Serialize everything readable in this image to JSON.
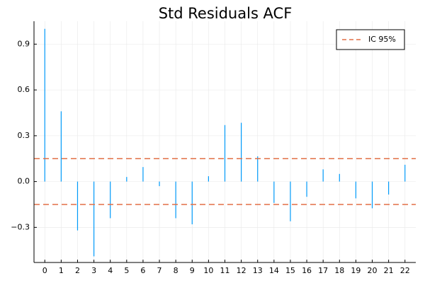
{
  "chart_data": {
    "type": "bar",
    "title": "Std Residuals ACF",
    "xlabel": "",
    "ylabel": "",
    "x": [
      0,
      1,
      2,
      3,
      4,
      5,
      6,
      7,
      8,
      9,
      10,
      11,
      12,
      13,
      14,
      15,
      16,
      17,
      18,
      19,
      20,
      21,
      22
    ],
    "values": [
      1.0,
      0.46,
      -0.32,
      -0.49,
      -0.24,
      0.03,
      0.095,
      -0.03,
      -0.24,
      -0.28,
      0.035,
      0.37,
      0.385,
      0.165,
      -0.14,
      -0.26,
      -0.1,
      0.08,
      0.05,
      -0.11,
      -0.175,
      -0.085,
      0.11
    ],
    "xlim": [
      -0.66,
      22.66
    ],
    "ylim": [
      -0.53,
      1.05
    ],
    "xticks": [
      0,
      1,
      2,
      3,
      4,
      5,
      6,
      7,
      8,
      9,
      10,
      11,
      12,
      13,
      14,
      15,
      16,
      17,
      18,
      19,
      20,
      21,
      22
    ],
    "yticks": [
      -0.3,
      0.0,
      0.3,
      0.6,
      0.9
    ],
    "ytick_labels": [
      "−0.3",
      "0.0",
      "0.3",
      "0.6",
      "0.9"
    ],
    "confidence_bounds": [
      0.15,
      -0.15
    ],
    "grid": true,
    "legend": {
      "position": "top-right",
      "entries": [
        {
          "label": "IC 95%",
          "color": "#e26f46",
          "style": "dashed"
        }
      ]
    },
    "colors": {
      "bars": "#009af9",
      "ic_line": "#e26f46",
      "grid": "#e8e8e8",
      "axis": "#000000"
    }
  }
}
